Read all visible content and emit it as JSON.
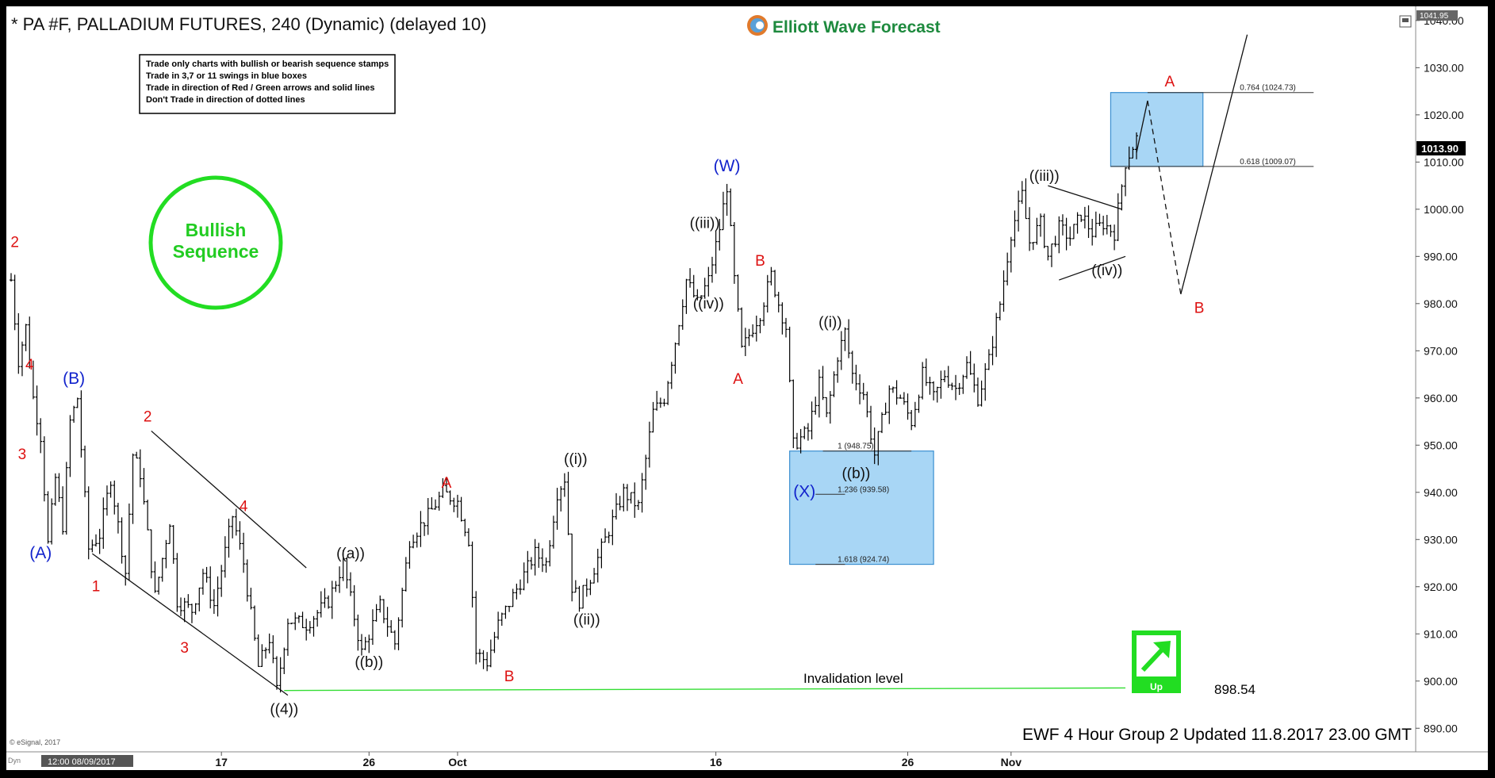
{
  "header": {
    "title": "* PA #F, PALLADIUM FUTURES, 240 (Dynamic) (delayed 10)",
    "brand": "Elliott Wave Forecast"
  },
  "rules": [
    "Trade only charts with bullish or bearish sequence stamps",
    "Trade in 3,7 or 11 swings in blue boxes",
    "Trade in direction of Red / Green arrows and solid lines",
    "Don't Trade in direction of dotted lines"
  ],
  "stamp": {
    "line1": "Bullish",
    "line2": "Sequence"
  },
  "badge": {
    "label": "Up"
  },
  "invalidation": {
    "label": "Invalidation level",
    "value": "898.54"
  },
  "footer": {
    "update": "EWF 4 Hour Group 2 Updated 11.8.2017 23.00 GMT",
    "copyright": "© eSignal, 2017",
    "dyn": "Dyn",
    "cursor_time": "12:00 08/09/2017"
  },
  "colors": {
    "wave_red": "#dd1111",
    "wave_blue": "#1122cc",
    "wave_black": "#111111",
    "box_fill": "#a8d6f5",
    "box_stroke": "#3a8fd0",
    "invalidation_line": "#33dd33",
    "bars": "#000000"
  },
  "chart_data": {
    "type": "ohlc",
    "title": "* PA #F, PALLADIUM FUTURES, 240 (Dynamic) (delayed 10)",
    "xlabel": "",
    "ylabel": "",
    "ylim": [
      885,
      1043
    ],
    "axis_high": "1041.95",
    "last_price": "1013.90",
    "y_ticks": [
      "1040.00",
      "1030.00",
      "1020.00",
      "1010.00",
      "1000.00",
      "990.00",
      "980.00",
      "970.00",
      "960.00",
      "950.00",
      "940.00",
      "930.00",
      "920.00",
      "910.00",
      "900.00",
      "890.00"
    ],
    "x_ticks": [
      {
        "label": "17",
        "bar": 57
      },
      {
        "label": "26",
        "bar": 97
      },
      {
        "label": "Oct",
        "bar": 121
      },
      {
        "label": "16",
        "bar": 191
      },
      {
        "label": "26",
        "bar": 243
      },
      {
        "label": "Nov",
        "bar": 271
      }
    ],
    "n_bars": 306,
    "price_path": [
      [
        0,
        985
      ],
      [
        2,
        968
      ],
      [
        4,
        975
      ],
      [
        6,
        960
      ],
      [
        8,
        952
      ],
      [
        10,
        929
      ],
      [
        12,
        943
      ],
      [
        14,
        933
      ],
      [
        16,
        955
      ],
      [
        18,
        960
      ],
      [
        21,
        928
      ],
      [
        24,
        931
      ],
      [
        27,
        943
      ],
      [
        31,
        923
      ],
      [
        33,
        948
      ],
      [
        35,
        944
      ],
      [
        39,
        918
      ],
      [
        43,
        934
      ],
      [
        45,
        917
      ],
      [
        49,
        915
      ],
      [
        52,
        923
      ],
      [
        55,
        916
      ],
      [
        60,
        935
      ],
      [
        63,
        925
      ],
      [
        67,
        903
      ],
      [
        70,
        909
      ],
      [
        72,
        898
      ],
      [
        75,
        913
      ],
      [
        80,
        912
      ],
      [
        86,
        917
      ],
      [
        90,
        925
      ],
      [
        95,
        906
      ],
      [
        100,
        916
      ],
      [
        104,
        908
      ],
      [
        108,
        930
      ],
      [
        113,
        935
      ],
      [
        117,
        940
      ],
      [
        121,
        938
      ],
      [
        124,
        930
      ],
      [
        126,
        906
      ],
      [
        129,
        904
      ],
      [
        132,
        912
      ],
      [
        136,
        918
      ],
      [
        142,
        927
      ],
      [
        145,
        925
      ],
      [
        148,
        940
      ],
      [
        150,
        943
      ],
      [
        152,
        920
      ],
      [
        154,
        917
      ],
      [
        157,
        922
      ],
      [
        162,
        932
      ],
      [
        166,
        940
      ],
      [
        170,
        937
      ],
      [
        174,
        957
      ],
      [
        177,
        960
      ],
      [
        180,
        972
      ],
      [
        183,
        985
      ],
      [
        186,
        980
      ],
      [
        189,
        985
      ],
      [
        192,
        996
      ],
      [
        194,
        1005
      ],
      [
        196,
        985
      ],
      [
        198,
        970
      ],
      [
        201,
        975
      ],
      [
        203,
        978
      ],
      [
        206,
        986
      ],
      [
        208,
        980
      ],
      [
        210,
        975
      ],
      [
        212,
        950
      ],
      [
        216,
        953
      ],
      [
        219,
        963
      ],
      [
        221,
        956
      ],
      [
        224,
        969
      ],
      [
        226,
        974
      ],
      [
        228,
        965
      ],
      [
        231,
        961
      ],
      [
        234,
        948
      ],
      [
        238,
        962
      ],
      [
        241,
        960
      ],
      [
        244,
        955
      ],
      [
        247,
        965
      ],
      [
        250,
        960
      ],
      [
        253,
        965
      ],
      [
        256,
        962
      ],
      [
        259,
        967
      ],
      [
        262,
        960
      ],
      [
        265,
        968
      ],
      [
        268,
        980
      ],
      [
        271,
        995
      ],
      [
        274,
        1003
      ],
      [
        276,
        993
      ],
      [
        279,
        997
      ],
      [
        281,
        990
      ],
      [
        284,
        996
      ],
      [
        287,
        994
      ],
      [
        290,
        999
      ],
      [
        293,
        995
      ],
      [
        296,
        997
      ],
      [
        299,
        995
      ],
      [
        302,
        1010
      ],
      [
        305,
        1015
      ]
    ],
    "last_bar": 305,
    "boxes": [
      {
        "name": "(X)-blue-box",
        "bar_start": 211,
        "bar_end": 250,
        "price_top": 948.75,
        "price_bottom": 924.74
      },
      {
        "name": "A-target-box",
        "bar_start": 298,
        "bar_end": 323,
        "price_top": 1024.73,
        "price_bottom": 1009.07
      }
    ],
    "fib_levels": [
      {
        "label": "1 (948.75)",
        "price": 948.75,
        "bar_start": 220,
        "bar_end": 244,
        "text_bar": 224
      },
      {
        "label": "1.236 (939.58)",
        "price": 939.58,
        "bar_start": 218,
        "bar_end": 226,
        "text_bar": 224
      },
      {
        "label": "1.618 (924.74)",
        "price": 924.74,
        "bar_start": 218,
        "bar_end": 226,
        "text_bar": 224
      },
      {
        "label": "0.618 (1009.07)",
        "price": 1009.07,
        "bar_start": 298,
        "bar_end": 353,
        "text_bar": 333
      },
      {
        "label": "0.764 (1024.73)",
        "price": 1024.73,
        "bar_start": 308,
        "bar_end": 353,
        "text_bar": 333
      }
    ],
    "trendlines": [
      {
        "name": "channel-upper",
        "from": [
          38,
          953
        ],
        "to": [
          80,
          924
        ],
        "style": "solid"
      },
      {
        "name": "channel-lower",
        "from": [
          22,
          927
        ],
        "to": [
          75,
          897
        ],
        "style": "solid"
      },
      {
        "name": "triangle-upper",
        "from": [
          281,
          1005
        ],
        "to": [
          301,
          1000
        ],
        "style": "solid"
      },
      {
        "name": "triangle-lower",
        "from": [
          284,
          985
        ],
        "to": [
          302,
          990
        ],
        "style": "solid"
      },
      {
        "name": "projection-up-1",
        "from": [
          305,
          1012
        ],
        "to": [
          308,
          1023
        ],
        "style": "solid"
      },
      {
        "name": "projection-down",
        "from": [
          308,
          1023
        ],
        "to": [
          317,
          982
        ],
        "style": "dashed"
      },
      {
        "name": "projection-up-2",
        "from": [
          317,
          982
        ],
        "to": [
          335,
          1037
        ],
        "style": "solid"
      },
      {
        "name": "invalidation-line",
        "from": [
          74,
          898
        ],
        "to": [
          302,
          898.54
        ],
        "style": "green"
      }
    ],
    "wave_labels": [
      {
        "text": "2",
        "bar": 1,
        "price": 992,
        "color": "red"
      },
      {
        "text": "4",
        "bar": 5,
        "price": 966,
        "color": "red"
      },
      {
        "text": "3",
        "bar": 3,
        "price": 947,
        "color": "red"
      },
      {
        "text": "(A)",
        "bar": 8,
        "price": 926,
        "color": "blue"
      },
      {
        "text": "(B)",
        "bar": 17,
        "price": 963,
        "color": "blue"
      },
      {
        "text": "2",
        "bar": 37,
        "price": 955,
        "color": "red"
      },
      {
        "text": "1",
        "bar": 23,
        "price": 919,
        "color": "red"
      },
      {
        "text": "3",
        "bar": 47,
        "price": 906,
        "color": "red"
      },
      {
        "text": "4",
        "bar": 63,
        "price": 936,
        "color": "red"
      },
      {
        "text": "((4))",
        "bar": 74,
        "price": 893,
        "color": "black"
      },
      {
        "text": "((a))",
        "bar": 92,
        "price": 926,
        "color": "black"
      },
      {
        "text": "((b))",
        "bar": 97,
        "price": 903,
        "color": "black"
      },
      {
        "text": "A",
        "bar": 118,
        "price": 941,
        "color": "red"
      },
      {
        "text": "B",
        "bar": 135,
        "price": 900,
        "color": "red"
      },
      {
        "text": "((i))",
        "bar": 153,
        "price": 946,
        "color": "black"
      },
      {
        "text": "((ii))",
        "bar": 156,
        "price": 912,
        "color": "black"
      },
      {
        "text": "((iii))",
        "bar": 188,
        "price": 996,
        "color": "black"
      },
      {
        "text": "((iv))",
        "bar": 189,
        "price": 979,
        "color": "black"
      },
      {
        "text": "(W)",
        "bar": 194,
        "price": 1008,
        "color": "blue"
      },
      {
        "text": "A",
        "bar": 197,
        "price": 963,
        "color": "red"
      },
      {
        "text": "B",
        "bar": 203,
        "price": 988,
        "color": "red"
      },
      {
        "text": "((i))",
        "bar": 222,
        "price": 975,
        "color": "black"
      },
      {
        "text": "((b))",
        "bar": 229,
        "price": 943,
        "color": "black"
      },
      {
        "text": "(X)",
        "bar": 215,
        "price": 939,
        "color": "blue"
      },
      {
        "text": "((iii))",
        "bar": 280,
        "price": 1006,
        "color": "black"
      },
      {
        "text": "((iv))",
        "bar": 297,
        "price": 986,
        "color": "black"
      },
      {
        "text": "A",
        "bar": 314,
        "price": 1026,
        "color": "red"
      },
      {
        "text": "B",
        "bar": 322,
        "price": 978,
        "color": "red"
      }
    ]
  }
}
